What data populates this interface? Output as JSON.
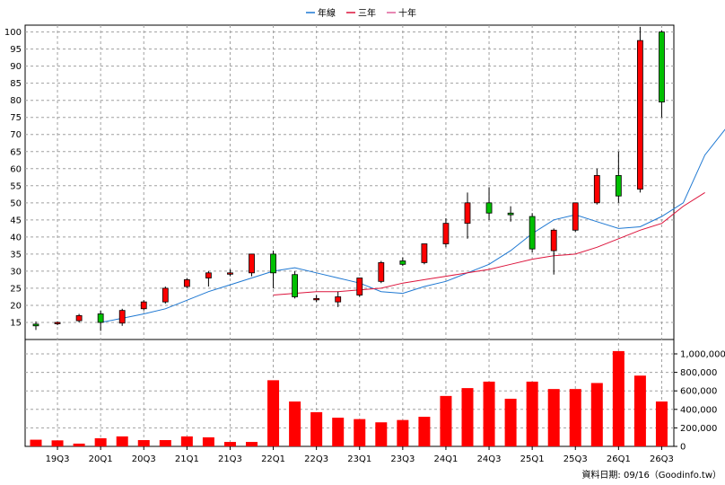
{
  "chart_data": {
    "type": "candlestick",
    "legend": {
      "placement": "top-center",
      "items": [
        {
          "name": "年線",
          "color": "#1e78d2"
        },
        {
          "name": "三年",
          "color": "#dc143c"
        },
        {
          "name": "十年",
          "color": "#e0609a"
        }
      ]
    },
    "price_axis": {
      "ylim": [
        10,
        102
      ],
      "ticks": [
        15,
        20,
        25,
        30,
        35,
        40,
        45,
        50,
        55,
        60,
        65,
        70,
        75,
        80,
        85,
        90,
        95,
        100
      ]
    },
    "volume_axis": {
      "ylim": [
        0,
        1000000
      ],
      "ticks": [
        0,
        200000,
        400000,
        600000,
        800000,
        1000000
      ],
      "tick_labels": [
        "0",
        "200,000",
        "400,000",
        "600,000",
        "800,000",
        "1,000,000"
      ]
    },
    "x_tick_labels": [
      "19Q3",
      "20Q1",
      "20Q3",
      "21Q1",
      "21Q3",
      "22Q1",
      "22Q3",
      "23Q1",
      "23Q3",
      "24Q1",
      "24Q3",
      "25Q1",
      "25Q3",
      "26Q1",
      "26Q3"
    ],
    "quarters": [
      "19Q2",
      "19Q3",
      "19Q4",
      "20Q1",
      "20Q2",
      "20Q3",
      "20Q4",
      "21Q1",
      "21Q2",
      "21Q3",
      "21Q4",
      "22Q1",
      "22Q2",
      "22Q3",
      "22Q4",
      "23Q1",
      "23Q2",
      "23Q3",
      "23Q4",
      "24Q1",
      "24Q2",
      "24Q3",
      "24Q4",
      "25Q1",
      "25Q2",
      "25Q3",
      "25Q4",
      "26Q1",
      "26Q2",
      "26Q3"
    ],
    "candles": [
      {
        "o": 14.5,
        "h": 15.3,
        "l": 12.8,
        "c": 14.0
      },
      {
        "o": 14.7,
        "h": 15.3,
        "l": 14.2,
        "c": 15.0
      },
      {
        "o": 15.5,
        "h": 17.5,
        "l": 15.0,
        "c": 17.0
      },
      {
        "o": 17.5,
        "h": 18.5,
        "l": 12.5,
        "c": 15.0
      },
      {
        "o": 14.8,
        "h": 19.0,
        "l": 14.0,
        "c": 18.5
      },
      {
        "o": 19.0,
        "h": 21.5,
        "l": 18.5,
        "c": 21.0
      },
      {
        "o": 21.0,
        "h": 25.5,
        "l": 20.5,
        "c": 25.0
      },
      {
        "o": 25.5,
        "h": 28.0,
        "l": 25.0,
        "c": 27.5
      },
      {
        "o": 28.0,
        "h": 30.0,
        "l": 25.5,
        "c": 29.5
      },
      {
        "o": 29.2,
        "h": 30.5,
        "l": 28.5,
        "c": 29.5
      },
      {
        "o": 29.5,
        "h": 35.0,
        "l": 28.5,
        "c": 35.0
      },
      {
        "o": 35.0,
        "h": 36.0,
        "l": 25.0,
        "c": 29.5
      },
      {
        "o": 29.0,
        "h": 30.0,
        "l": 22.0,
        "c": 22.5
      },
      {
        "o": 22.0,
        "h": 23.0,
        "l": 21.0,
        "c": 22.0
      },
      {
        "o": 21.0,
        "h": 24.0,
        "l": 19.5,
        "c": 22.5
      },
      {
        "o": 23.0,
        "h": 28.0,
        "l": 22.5,
        "c": 28.0
      },
      {
        "o": 27.0,
        "h": 33.0,
        "l": 26.5,
        "c": 32.5
      },
      {
        "o": 33.0,
        "h": 34.0,
        "l": 31.5,
        "c": 32.0
      },
      {
        "o": 32.5,
        "h": 38.0,
        "l": 32.0,
        "c": 38.0
      },
      {
        "o": 38.0,
        "h": 45.5,
        "l": 37.0,
        "c": 44.0
      },
      {
        "o": 44.0,
        "h": 53.0,
        "l": 39.5,
        "c": 50.0
      },
      {
        "o": 50.0,
        "h": 54.5,
        "l": 45.0,
        "c": 47.0
      },
      {
        "o": 47.0,
        "h": 49.0,
        "l": 44.5,
        "c": 46.5
      },
      {
        "o": 46.0,
        "h": 47.0,
        "l": 35.5,
        "c": 36.5
      },
      {
        "o": 36.0,
        "h": 42.5,
        "l": 29.0,
        "c": 42.0
      },
      {
        "o": 42.0,
        "h": 50.0,
        "l": 41.5,
        "c": 50.0
      },
      {
        "o": 50.0,
        "h": 60.0,
        "l": 49.5,
        "c": 58.0
      },
      {
        "o": 58.0,
        "h": 65.0,
        "l": 50.0,
        "c": 52.0
      },
      {
        "o": 54.0,
        "h": 101.5,
        "l": 53.0,
        "c": 97.5
      },
      {
        "o": 100.0,
        "h": 100.5,
        "l": 75.0,
        "c": 79.5
      }
    ],
    "series": [
      {
        "name": "年線",
        "color": "#1e78d2",
        "start": 3,
        "values": [
          15.0,
          16.2,
          17.5,
          19.0,
          21.5,
          24.0,
          26.0,
          28.0,
          30.0,
          31.0,
          29.5,
          28.0,
          26.5,
          24.0,
          23.5,
          25.5,
          27.0,
          29.5,
          32.0,
          36.0,
          41.0,
          45.0,
          46.5,
          44.5,
          42.5,
          43.0,
          46.0,
          50.0,
          64.0,
          72.0
        ]
      },
      {
        "name": "三年",
        "color": "#dc143c",
        "start": 11,
        "values": [
          23.0,
          23.5,
          24.0,
          24.0,
          24.5,
          25.0,
          26.5,
          27.5,
          28.5,
          29.5,
          30.5,
          32.0,
          33.5,
          34.5,
          35.0,
          37.0,
          39.5,
          42.0,
          44.0,
          49.0,
          53.0
        ]
      }
    ],
    "volume": [
      72000,
      65000,
      30000,
      88000,
      108000,
      68000,
      68000,
      108000,
      98000,
      48000,
      48000,
      715000,
      485000,
      370000,
      310000,
      295000,
      260000,
      285000,
      320000,
      545000,
      630000,
      700000,
      515000,
      700000,
      620000,
      620000,
      685000,
      1030000,
      765000,
      485000
    ],
    "footer": "資料日期: 09/16（Goodinfo.tw）"
  }
}
